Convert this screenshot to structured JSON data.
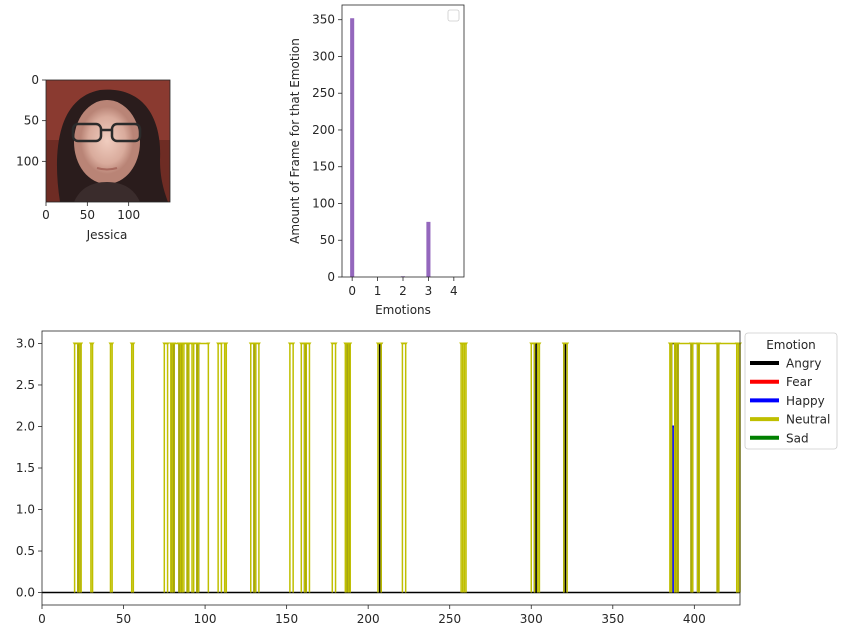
{
  "face_panel": {
    "xlabel": "Jessica",
    "xticks": [
      0,
      50,
      100
    ],
    "yticks": [
      0,
      50,
      100
    ],
    "img_size": [
      150,
      150
    ]
  },
  "chart_data": [
    {
      "type": "bar",
      "xlabel": "Emotions",
      "ylabel": "Amount of Frame for that Emotion",
      "categories": [
        0,
        1,
        2,
        3,
        4
      ],
      "values": [
        352,
        0,
        1,
        75,
        0
      ],
      "ylim": [
        0,
        370
      ],
      "yticks": [
        0,
        50,
        100,
        150,
        200,
        250,
        300,
        350
      ],
      "xlim": [
        -0.4,
        4.4
      ],
      "bar_color": "#9467bd",
      "legend": {
        "entries": [],
        "placement": "top-right"
      }
    },
    {
      "type": "line",
      "xlim": [
        0,
        428
      ],
      "ylim": [
        -0.15,
        3.15
      ],
      "xticks": [
        0,
        50,
        100,
        150,
        200,
        250,
        300,
        350,
        400
      ],
      "yticks": [
        0.0,
        0.5,
        1.0,
        1.5,
        2.0,
        2.5,
        3.0
      ],
      "legend": {
        "title": "Emotion",
        "placement": "outside-right",
        "entries": [
          {
            "name": "Angry",
            "color": "#000000"
          },
          {
            "name": "Fear",
            "color": "#ff0000"
          },
          {
            "name": "Happy",
            "color": "#0000ff"
          },
          {
            "name": "Neutral",
            "color": "#bfbf00"
          },
          {
            "name": "Sad",
            "color": "#008000"
          }
        ]
      },
      "series": [
        {
          "name": "Neutral",
          "color": "#bfbf00",
          "runs": [
            [
              20,
              22
            ],
            [
              23,
              24
            ],
            [
              30,
              31
            ],
            [
              42,
              43
            ],
            [
              55,
              56
            ],
            [
              75,
              77
            ],
            [
              79,
              80
            ],
            [
              81,
              84
            ],
            [
              85,
              86
            ],
            [
              87,
              89
            ],
            [
              90,
              92
            ],
            [
              93,
              95
            ],
            [
              96,
              102
            ],
            [
              108,
              110
            ],
            [
              112,
              113
            ],
            [
              128,
              130
            ],
            [
              131,
              133
            ],
            [
              152,
              154
            ],
            [
              159,
              161
            ],
            [
              162,
              164
            ],
            [
              178,
              180
            ],
            [
              186,
              187
            ],
            [
              188,
              189
            ],
            [
              206,
              208
            ],
            [
              221,
              223
            ],
            [
              257,
              258
            ],
            [
              259,
              260
            ],
            [
              300,
              302
            ],
            [
              304,
              305
            ],
            [
              320,
              322
            ],
            [
              385,
              386
            ],
            [
              388,
              389
            ],
            [
              390,
              398
            ],
            [
              399,
              402
            ],
            [
              403,
              414
            ],
            [
              415,
              426
            ],
            [
              427,
              428
            ]
          ]
        },
        {
          "name": "Angry",
          "color": "#000000",
          "runs": [
            [
              22,
              23
            ],
            [
              80,
              81
            ],
            [
              84,
              85
            ],
            [
              89,
              90
            ],
            [
              95,
              96
            ],
            [
              130,
              131
            ],
            [
              161,
              162
            ],
            [
              187,
              188
            ],
            [
              207,
              208
            ],
            [
              302,
              303
            ],
            [
              320,
              321
            ],
            [
              386,
              388
            ],
            [
              389,
              390
            ],
            [
              398,
              399
            ],
            [
              402,
              403
            ],
            [
              414,
              415
            ]
          ]
        },
        {
          "name": "Happy",
          "color": "#0000ff",
          "value": 2,
          "runs": [
            [
              387,
              388
            ]
          ]
        }
      ]
    }
  ]
}
